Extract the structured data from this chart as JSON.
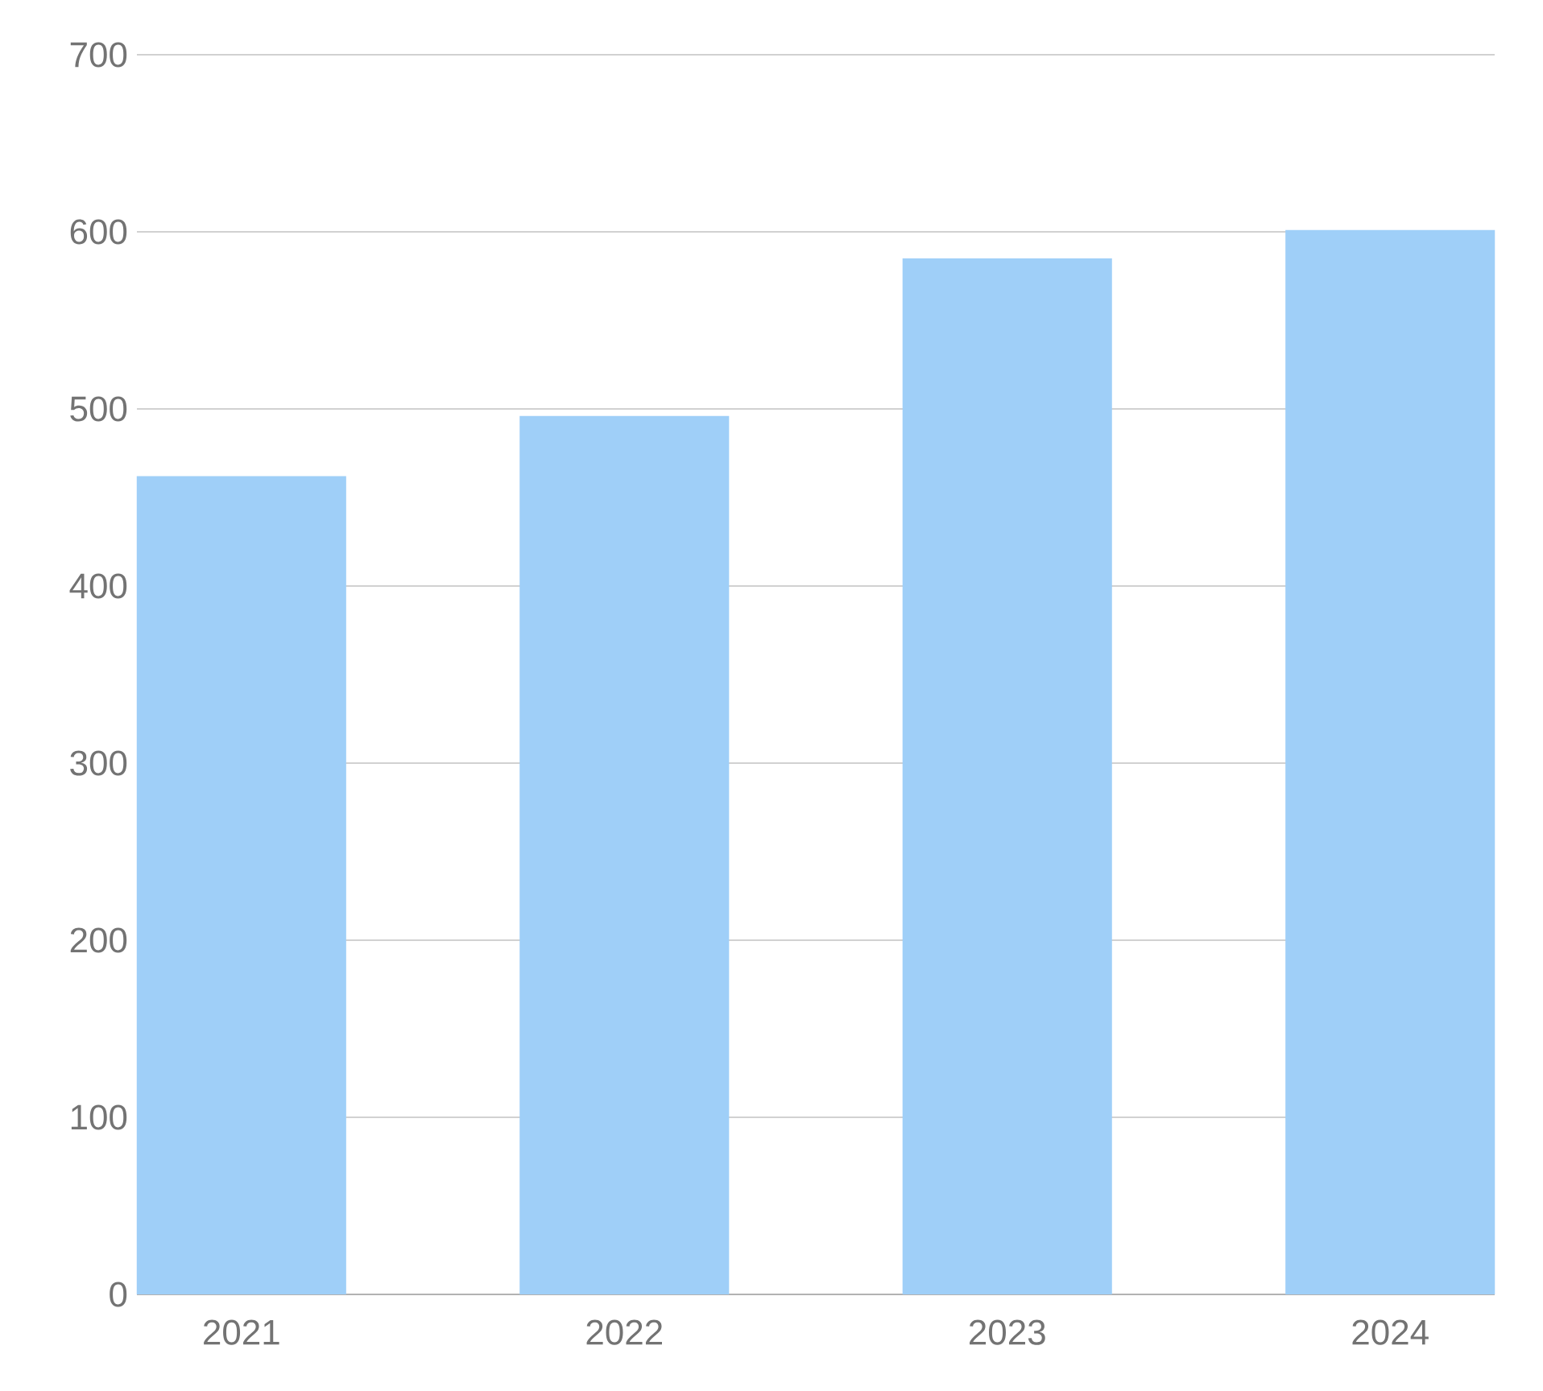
{
  "chart_data": {
    "type": "bar",
    "categories": [
      "2021",
      "2022",
      "2023",
      "2024"
    ],
    "values": [
      462,
      496,
      585,
      601
    ],
    "color": "#9fcff8",
    "ylim": [
      0,
      700
    ],
    "yticks": [
      0,
      100,
      200,
      300,
      400,
      500,
      600,
      700
    ],
    "grid": "y"
  }
}
